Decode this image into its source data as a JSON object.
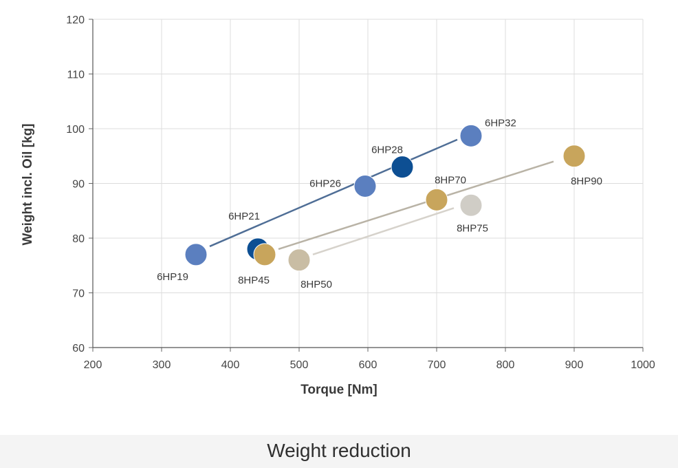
{
  "chart_data": {
    "type": "scatter",
    "xlabel": "Torque [Nm]",
    "ylabel": "Weight incl. Oil [kg]",
    "xlim": [
      200,
      1000
    ],
    "ylim": [
      60,
      120
    ],
    "xticks": [
      200,
      300,
      400,
      500,
      600,
      700,
      800,
      900,
      1000
    ],
    "yticks": [
      60,
      70,
      80,
      90,
      100,
      110,
      120
    ],
    "grid": true,
    "points": [
      {
        "label": "6HP19",
        "x": 350,
        "y": 77,
        "color": "#5b7fbf"
      },
      {
        "label": "6HP21",
        "x": 440,
        "y": 78,
        "color": "#0d4f93"
      },
      {
        "label": "6HP26",
        "x": 596,
        "y": 89.5,
        "color": "#5b7fbf"
      },
      {
        "label": "6HP28",
        "x": 650,
        "y": 93,
        "color": "#0d4f93"
      },
      {
        "label": "6HP32",
        "x": 750,
        "y": 98.7,
        "color": "#5b7fbf"
      },
      {
        "label": "8HP45",
        "x": 450,
        "y": 77,
        "color": "#c8a55c"
      },
      {
        "label": "8HP50",
        "x": 500,
        "y": 76,
        "color": "#c9bda4"
      },
      {
        "label": "8HP70",
        "x": 700,
        "y": 87,
        "color": "#c8a55c"
      },
      {
        "label": "8HP75",
        "x": 750,
        "y": 86,
        "color": "#d0cdc6"
      },
      {
        "label": "8HP90",
        "x": 900,
        "y": 95,
        "color": "#c8a55c"
      }
    ],
    "trend_lines": [
      {
        "from": [
          370,
          78.5
        ],
        "to": [
          730,
          98
        ],
        "color": "#4f6e96"
      },
      {
        "from": [
          470,
          78
        ],
        "to": [
          870,
          94
        ],
        "color": "#b9b3a6"
      },
      {
        "from": [
          520,
          77
        ],
        "to": [
          725,
          85.5
        ],
        "color": "#d6d2cb"
      }
    ]
  },
  "caption": "Weight reduction"
}
